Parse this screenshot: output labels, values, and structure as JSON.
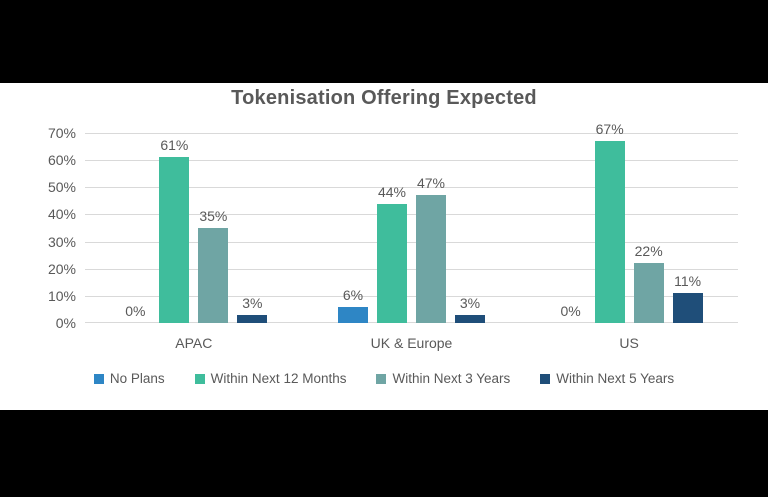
{
  "frame": {
    "letterbox_color": "#000000",
    "panel_color": "#ffffff"
  },
  "chart_data": {
    "type": "bar",
    "title": "Tokenisation Offering Expected",
    "categories": [
      "APAC",
      "UK & Europe",
      "US"
    ],
    "series": [
      {
        "name": "No Plans",
        "color": "#2E86C5",
        "values": [
          0,
          6,
          0
        ]
      },
      {
        "name": "Within Next 12 Months",
        "color": "#3FBD9C",
        "values": [
          61,
          44,
          67
        ]
      },
      {
        "name": "Within Next 3 Years",
        "color": "#6FA5A4",
        "values": [
          35,
          47,
          22
        ]
      },
      {
        "name": "Within Next 5 Years",
        "color": "#1F4E79",
        "values": [
          3,
          3,
          11
        ]
      }
    ],
    "data_label_suffix": "%",
    "y_axis": {
      "min": 0,
      "max": 70,
      "step": 10,
      "ticks": [
        "0%",
        "10%",
        "20%",
        "30%",
        "40%",
        "50%",
        "60%",
        "70%"
      ]
    },
    "grid": true,
    "gridline_color": "#d9d9d9",
    "text_color": "#595959",
    "legend_position": "bottom"
  }
}
